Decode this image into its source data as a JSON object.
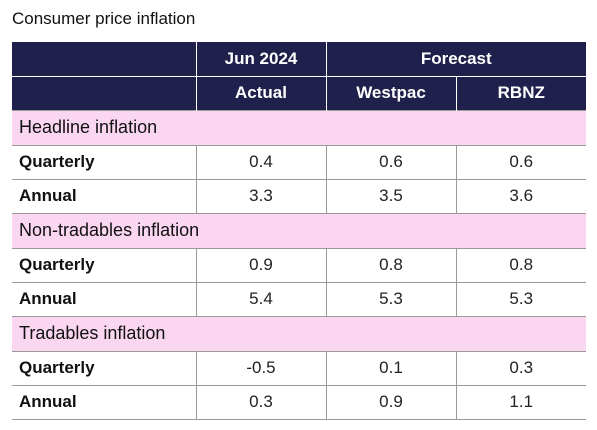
{
  "title": "Consumer price inflation",
  "header": {
    "jun": "Jun 2024",
    "forecast": "Forecast",
    "actual": "Actual",
    "westpac": "Westpac",
    "rbnz": "RBNZ"
  },
  "chart_data": {
    "type": "table",
    "title": "Consumer price inflation",
    "columns": [
      "Actual",
      "Westpac",
      "RBNZ"
    ],
    "sections": [
      {
        "name": "Headline inflation",
        "rows": [
          {
            "label": "Quarterly",
            "values": [
              "0.4",
              "0.6",
              "0.6"
            ]
          },
          {
            "label": "Annual",
            "values": [
              "3.3",
              "3.5",
              "3.6"
            ]
          }
        ]
      },
      {
        "name": "Non-tradables inflation",
        "rows": [
          {
            "label": "Quarterly",
            "values": [
              "0.9",
              "0.8",
              "0.8"
            ]
          },
          {
            "label": "Annual",
            "values": [
              "5.4",
              "5.3",
              "5.3"
            ]
          }
        ]
      },
      {
        "name": "Tradables inflation",
        "rows": [
          {
            "label": "Quarterly",
            "values": [
              "-0.5",
              "0.1",
              "0.3"
            ]
          },
          {
            "label": "Annual",
            "values": [
              "0.3",
              "0.9",
              "1.1"
            ]
          }
        ]
      }
    ]
  }
}
